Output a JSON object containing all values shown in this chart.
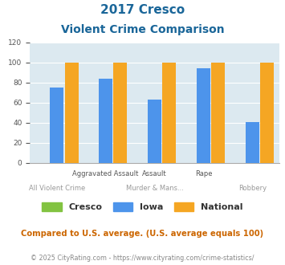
{
  "title_line1": "2017 Cresco",
  "title_line2": "Violent Crime Comparison",
  "series": {
    "Cresco": [
      0,
      0,
      0,
      0,
      0
    ],
    "Iowa": [
      75,
      84,
      63,
      94,
      41
    ],
    "National": [
      100,
      100,
      100,
      100,
      100
    ]
  },
  "colors": {
    "Cresco": "#82c341",
    "Iowa": "#4d94eb",
    "National": "#f5a623"
  },
  "ylim": [
    0,
    120
  ],
  "yticks": [
    0,
    20,
    40,
    60,
    80,
    100,
    120
  ],
  "plot_bg": "#dce9f0",
  "title_color": "#1a6699",
  "footnote1": "Compared to U.S. average. (U.S. average equals 100)",
  "footnote2": "© 2025 CityRating.com - https://www.cityrating.com/crime-statistics/",
  "footnote1_color": "#cc6600",
  "footnote2_color": "#888888",
  "label_row1": [
    "",
    "Aggravated Assault",
    "Assault",
    "Rape",
    ""
  ],
  "label_row2": [
    "All Violent Crime",
    "",
    "Murder & Mans...",
    "",
    "Robbery"
  ],
  "bar_width": 0.3,
  "group_positions": [
    0,
    1,
    2,
    3,
    4
  ]
}
